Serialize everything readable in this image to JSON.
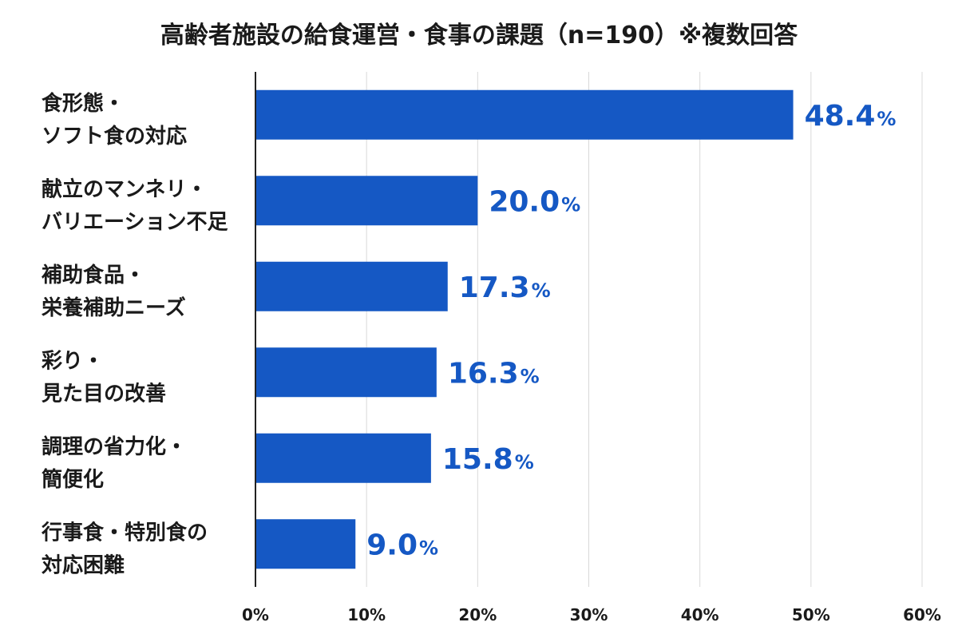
{
  "chart_data": {
    "type": "bar",
    "orientation": "horizontal",
    "title": "高齢者施設の給食運営・食事の課題（n=190）※複数回答",
    "categories": [
      [
        "食形態・",
        "ソフト食の対応"
      ],
      [
        "献立のマンネリ・",
        "バリエーション不足"
      ],
      [
        "補助食品・",
        "栄養補助ニーズ"
      ],
      [
        "彩り・",
        "見た目の改善"
      ],
      [
        "調理の省力化・",
        "簡便化"
      ],
      [
        "行事食・特別食の",
        "対応困難"
      ]
    ],
    "values": [
      48.4,
      20.0,
      17.3,
      16.3,
      15.8,
      9.0
    ],
    "value_labels": [
      "48.4",
      "20.0",
      "17.3",
      "16.3",
      "15.8",
      "9.0"
    ],
    "value_suffix": "%",
    "xlim": [
      0,
      60
    ],
    "x_ticks": [
      0,
      10,
      20,
      30,
      40,
      50,
      60
    ],
    "x_tick_labels": [
      "0%",
      "10%",
      "20%",
      "30%",
      "40%",
      "50%",
      "60%"
    ],
    "grid": "vertical",
    "legend": "none",
    "colors": {
      "bar": "#1558c4",
      "value_label": "#1558c4",
      "grid": "#d9d9d9",
      "axis": "#222222",
      "text": "#1a1a1a"
    }
  }
}
